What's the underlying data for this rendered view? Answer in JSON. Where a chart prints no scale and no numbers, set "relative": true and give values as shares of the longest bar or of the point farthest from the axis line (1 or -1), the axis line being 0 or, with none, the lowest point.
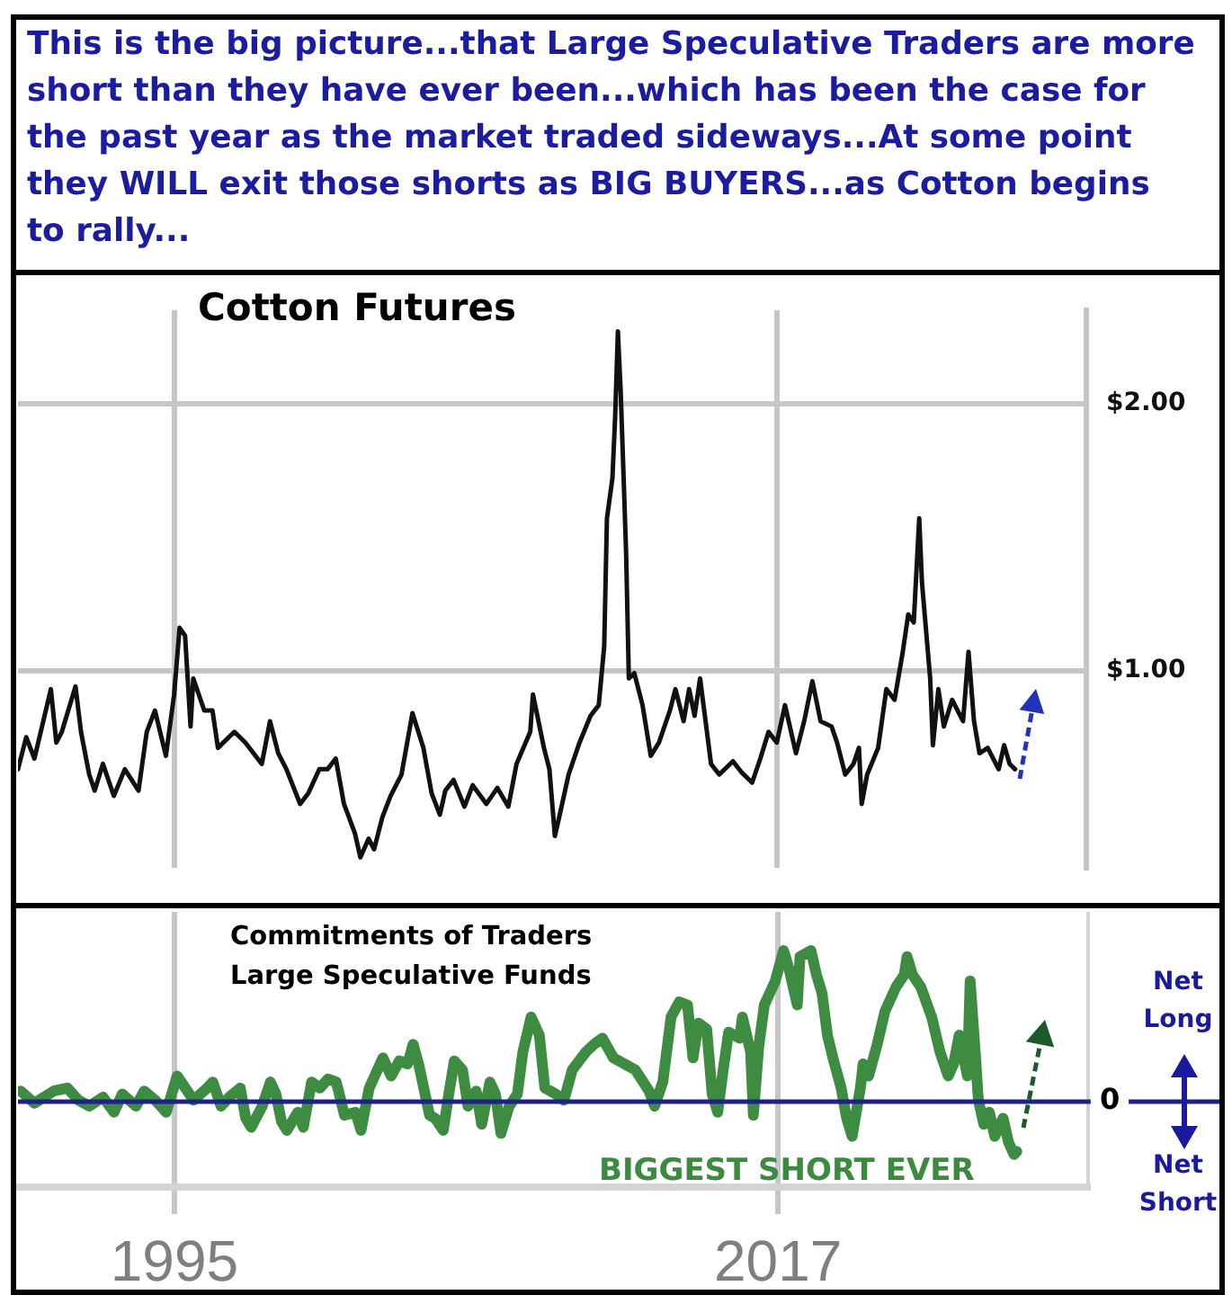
{
  "chart_data": [
    {
      "type": "line",
      "title": "Cotton Futures",
      "annotations": [
        "This is the big picture...that Large Speculative Traders are more short than they have ever been...which has been the case for the past year as the market traded sideways...At some point they WILL exit those shorts as BIG BUYERS...as Cotton begins to rally..."
      ],
      "x": [
        1989.3,
        1989.6,
        1989.9,
        1990.5,
        1990.7,
        1990.9,
        1991.4,
        1991.6,
        1991.9,
        1992.1,
        1992.4,
        1992.8,
        1993.2,
        1993.7,
        1994.0,
        1994.3,
        1994.7,
        1995.0,
        1995.2,
        1995.4,
        1995.6,
        1995.7,
        1996.1,
        1996.4,
        1996.6,
        1997.2,
        1997.6,
        1998.2,
        1998.5,
        1998.8,
        1999.1,
        1999.6,
        1999.9,
        2000.3,
        2000.6,
        2000.9,
        2001.2,
        2001.6,
        2001.8,
        2002.1,
        2002.3,
        2002.6,
        2002.9,
        2003.3,
        2003.7,
        2004.1,
        2004.4,
        2004.7,
        2004.9,
        2005.2,
        2005.6,
        2005.9,
        2006.4,
        2006.8,
        2007.2,
        2007.5,
        2008.0,
        2008.1,
        2008.5,
        2008.7,
        2008.9,
        2009.1,
        2009.4,
        2009.8,
        2010.2,
        2010.5,
        2010.7,
        2010.8,
        2011.0,
        2011.1,
        2011.2,
        2011.3,
        2011.4,
        2011.5,
        2011.6,
        2011.8,
        2012.1,
        2012.4,
        2012.7,
        2013.1,
        2013.3,
        2013.6,
        2013.8,
        2014.0,
        2014.2,
        2014.4,
        2014.6,
        2014.9,
        2015.4,
        2015.7,
        2016.1,
        2016.4,
        2016.7,
        2017.0,
        2017.3,
        2017.7,
        2018.0,
        2018.3,
        2018.6,
        2019.0,
        2019.2,
        2019.5,
        2019.8,
        2020.0,
        2020.1,
        2020.3,
        2020.7,
        2021.0,
        2021.3,
        2021.6,
        2021.8,
        2022.0,
        2022.2,
        2022.3,
        2022.4,
        2022.6,
        2022.7,
        2022.9,
        2023.1,
        2023.4,
        2023.8,
        2024.0,
        2024.2,
        2024.4,
        2024.7,
        2025.1,
        2025.3,
        2025.5,
        2025.7
      ],
      "values": [
        0.63,
        0.75,
        0.67,
        0.93,
        0.73,
        0.77,
        0.94,
        0.77,
        0.61,
        0.55,
        0.65,
        0.53,
        0.63,
        0.55,
        0.77,
        0.85,
        0.68,
        0.91,
        1.16,
        1.13,
        0.79,
        0.97,
        0.85,
        0.85,
        0.71,
        0.77,
        0.73,
        0.65,
        0.81,
        0.69,
        0.63,
        0.5,
        0.54,
        0.63,
        0.63,
        0.67,
        0.5,
        0.39,
        0.3,
        0.37,
        0.33,
        0.45,
        0.53,
        0.61,
        0.84,
        0.71,
        0.54,
        0.46,
        0.55,
        0.59,
        0.49,
        0.57,
        0.5,
        0.56,
        0.49,
        0.65,
        0.77,
        0.91,
        0.71,
        0.63,
        0.38,
        0.47,
        0.61,
        0.73,
        0.83,
        0.87,
        1.09,
        1.57,
        1.72,
        1.95,
        2.27,
        2.05,
        1.75,
        1.44,
        0.97,
        0.99,
        0.87,
        0.68,
        0.73,
        0.85,
        0.93,
        0.81,
        0.93,
        0.83,
        0.97,
        0.81,
        0.65,
        0.61,
        0.66,
        0.62,
        0.58,
        0.67,
        0.77,
        0.73,
        0.87,
        0.69,
        0.81,
        0.96,
        0.81,
        0.79,
        0.73,
        0.61,
        0.65,
        0.71,
        0.5,
        0.61,
        0.71,
        0.93,
        0.89,
        1.07,
        1.21,
        1.18,
        1.57,
        1.33,
        1.21,
        0.97,
        0.72,
        0.93,
        0.79,
        0.89,
        0.81,
        1.07,
        0.81,
        0.69,
        0.71,
        0.63,
        0.72,
        0.65,
        0.63
      ],
      "color": "#111111",
      "xlim": [
        1989.3,
        2028.3
      ],
      "xticks": [
        {
          "value": 1995,
          "label": null
        },
        {
          "value": 2017,
          "label": null
        }
      ],
      "ylim": [
        0.26,
        2.35
      ],
      "yticks": [
        {
          "value": 1,
          "label": "$1.00"
        },
        {
          "value": 2,
          "label": "$2.00"
        }
      ],
      "grid": true,
      "tick_labels": "y"
    },
    {
      "type": "line",
      "title": "Commitments of Traders",
      "subtitle": "Large Speculative Funds",
      "annotations": [
        "BIGGEST SHORT EVER",
        "Net Long",
        "Net Short"
      ],
      "x": [
        1989.4,
        1989.9,
        1990.6,
        1991.1,
        1991.5,
        1991.9,
        1992.4,
        1992.8,
        1993.1,
        1993.6,
        1993.9,
        1994.3,
        1994.7,
        1995.1,
        1995.4,
        1995.7,
        1996.2,
        1996.4,
        1996.7,
        1997.0,
        1997.4,
        1997.6,
        1997.8,
        1998.2,
        1998.5,
        1998.7,
        1998.9,
        1999.1,
        1999.5,
        1999.7,
        2000.0,
        2000.3,
        2000.6,
        2000.9,
        2001.2,
        2001.6,
        2001.8,
        2002.1,
        2002.4,
        2002.6,
        2002.9,
        2003.2,
        2003.5,
        2003.7,
        2003.9,
        2004.3,
        2004.5,
        2004.8,
        2005.0,
        2005.2,
        2005.5,
        2005.7,
        2006.0,
        2006.2,
        2006.5,
        2006.7,
        2006.9,
        2007.2,
        2007.5,
        2007.7,
        2008.0,
        2008.3,
        2008.5,
        2008.9,
        2009.2,
        2009.5,
        2010.0,
        2010.3,
        2010.6,
        2011.0,
        2011.4,
        2011.8,
        2012.3,
        2012.5,
        2012.8,
        2013.1,
        2013.4,
        2013.7,
        2013.9,
        2014.1,
        2014.4,
        2014.6,
        2014.8,
        2015.0,
        2015.2,
        2015.6,
        2015.7,
        2016.0,
        2016.1,
        2016.3,
        2016.5,
        2016.9,
        2017.2,
        2017.4,
        2017.7,
        2017.8,
        2018.2,
        2018.4,
        2018.6,
        2018.8,
        2019.0,
        2019.3,
        2019.5,
        2019.7,
        2020.0,
        2020.1,
        2020.3,
        2020.6,
        2020.9,
        2021.3,
        2021.6,
        2021.7,
        2021.9,
        2022.2,
        2022.6,
        2022.9,
        2023.2,
        2023.4,
        2023.6,
        2023.9,
        2024.0,
        2024.2,
        2024.3,
        2024.5,
        2024.7,
        2024.9,
        2025.2,
        2025.4,
        2025.6,
        2025.7
      ],
      "values": [
        0.07,
        -0.01,
        0.07,
        0.09,
        0.01,
        -0.03,
        0.03,
        -0.07,
        0.05,
        -0.03,
        0.07,
        0.01,
        -0.07,
        0.17,
        0.09,
        0.01,
        0.09,
        0.13,
        -0.03,
        0.03,
        0.09,
        -0.11,
        -0.17,
        -0.03,
        0.13,
        0.05,
        -0.13,
        -0.19,
        -0.07,
        -0.17,
        0.13,
        0.09,
        0.15,
        0.13,
        -0.09,
        -0.07,
        -0.19,
        0.09,
        0.21,
        0.29,
        0.17,
        0.27,
        0.25,
        0.38,
        0.25,
        -0.09,
        -0.11,
        -0.19,
        0.05,
        0.27,
        0.21,
        -0.03,
        0.07,
        -0.15,
        0.13,
        0.05,
        -0.21,
        -0.03,
        0.05,
        0.33,
        0.56,
        0.44,
        0.09,
        0.05,
        0.01,
        0.21,
        0.33,
        0.38,
        0.42,
        0.29,
        0.25,
        0.21,
        0.07,
        -0.03,
        0.13,
        0.56,
        0.66,
        0.64,
        0.29,
        0.52,
        0.48,
        0.05,
        -0.07,
        0.21,
        0.46,
        0.42,
        0.56,
        0.33,
        -0.09,
        0.37,
        0.64,
        0.8,
        1.0,
        0.88,
        0.64,
        0.96,
        1.0,
        0.84,
        0.72,
        0.44,
        0.29,
        0.09,
        -0.11,
        -0.23,
        0.09,
        0.25,
        0.17,
        0.37,
        0.6,
        0.76,
        0.84,
        0.96,
        0.84,
        0.76,
        0.56,
        0.33,
        0.17,
        0.25,
        0.44,
        0.17,
        0.8,
        0.29,
        0.01,
        -0.15,
        -0.07,
        -0.23,
        -0.11,
        -0.27,
        -0.35,
        -0.33
      ],
      "color": "#3d8c42",
      "relative": true,
      "xlim": [
        1989.3,
        2028.3
      ],
      "xticks": [
        1995,
        2017
      ],
      "grid": "x",
      "tick_labels": "x",
      "ref_lines": [
        {
          "axis": "y",
          "value": 0,
          "label": "0",
          "color": "#1f1f8f"
        }
      ]
    }
  ]
}
